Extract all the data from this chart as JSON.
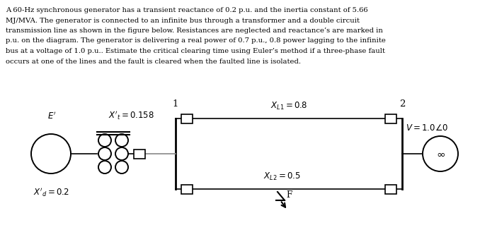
{
  "paragraph_lines": [
    "A 60-Hz synchronous generator has a transient reactance of 0.2 p.u. and the inertia constant of 5.66",
    "MJ/MVA. The generator is connected to an infinite bus through a transformer and a double circuit",
    "transmission line as shown in the figure below. Resistances are neglected and reactance’s are marked in",
    "p.u. on the diagram. The generator is delivering a real power of 0.7 p.u., 0.8 power lagging to the infinite",
    "bus at a voltage of 1.0 p.u.. Estimate the critical clearing time using Euler’s method if a three-phase fault",
    "occurs at one of the lines and the fault is cleared when the faulted line is isolated."
  ],
  "bg_color": "#ffffff",
  "text_color": "#000000",
  "line_color": "#000000",
  "font_size_para": 7.2,
  "font_size_label": 8.5,
  "font_size_bus": 9.5
}
